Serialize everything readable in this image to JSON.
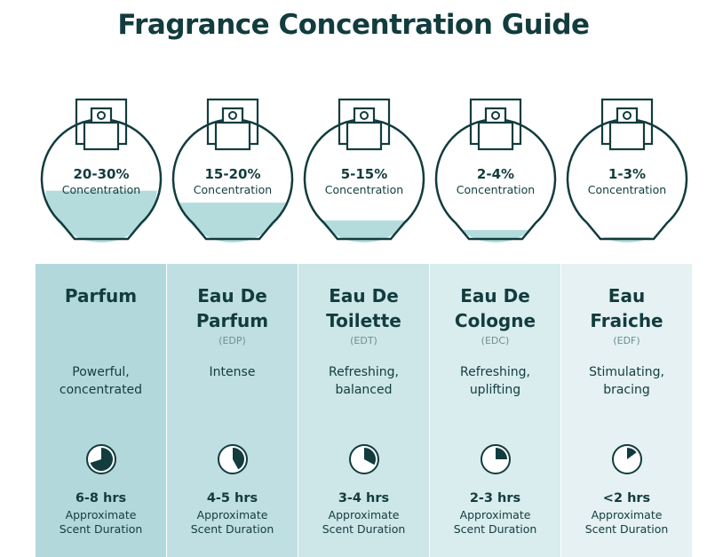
{
  "title": "Fragrance Concentration Guide",
  "colors": {
    "text": "#123c3e",
    "liquid": "#b4dcdd",
    "panel_start": "#b2d8dc",
    "panel_end": "#e8f2f3"
  },
  "items": [
    {
      "name_line1": "Parfum",
      "name_line2": "",
      "abbr": "",
      "concentration": "20-30%",
      "concentration_label": "Concentration",
      "fill_level": 0.45,
      "description_line1": "Powerful,",
      "description_line2": "concentrated",
      "duration": "6-8 hrs",
      "duration_label_line1": "Approximate",
      "duration_label_line2": "Scent Duration",
      "clock_fraction": 0.7,
      "bg": "#b3d8dc"
    },
    {
      "name_line1": "Eau De",
      "name_line2": "Parfum",
      "abbr": "(EDP)",
      "concentration": "15-20%",
      "concentration_label": "Concentration",
      "fill_level": 0.35,
      "description_line1": "Intense",
      "description_line2": "",
      "duration": "4-5 hrs",
      "duration_label_line1": "Approximate",
      "duration_label_line2": "Scent Duration",
      "clock_fraction": 0.42,
      "bg": "#c0dfe2"
    },
    {
      "name_line1": "Eau De",
      "name_line2": "Toilette",
      "abbr": "(EDT)",
      "concentration": "5-15%",
      "concentration_label": "Concentration",
      "fill_level": 0.2,
      "description_line1": "Refreshing,",
      "description_line2": "balanced",
      "duration": "3-4 hrs",
      "duration_label_line1": "Approximate",
      "duration_label_line2": "Scent Duration",
      "clock_fraction": 0.33,
      "bg": "#cde6e8"
    },
    {
      "name_line1": "Eau De",
      "name_line2": "Cologne",
      "abbr": "(EDC)",
      "concentration": "2-4%",
      "concentration_label": "Concentration",
      "fill_level": 0.12,
      "description_line1": "Refreshing,",
      "description_line2": "uplifting",
      "duration": "2-3 hrs",
      "duration_label_line1": "Approximate",
      "duration_label_line2": "Scent Duration",
      "clock_fraction": 0.25,
      "bg": "#d9ecee"
    },
    {
      "name_line1": "Eau",
      "name_line2": "Fraiche",
      "abbr": "(EDF)",
      "concentration": "1-3%",
      "concentration_label": "Concentration",
      "fill_level": 0.06,
      "description_line1": "Stimulating,",
      "description_line2": "bracing",
      "duration": "<2 hrs",
      "duration_label_line1": "Approximate",
      "duration_label_line2": "Scent Duration",
      "clock_fraction": 0.15,
      "bg": "#e5f1f2"
    }
  ]
}
